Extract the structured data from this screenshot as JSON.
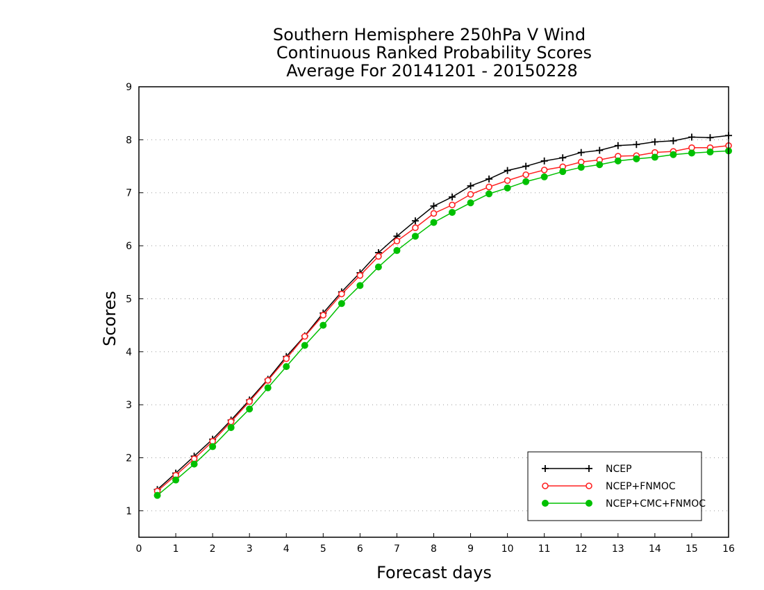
{
  "chart_data": {
    "type": "line",
    "title_lines": [
      "Southern Hemisphere 250hPa V Wind",
      "Continuous Ranked Probability Scores",
      "Average For 20141201 - 20150228"
    ],
    "xlabel": "Forecast days",
    "ylabel": "Scores",
    "xlim": [
      0,
      16
    ],
    "ylim": [
      0.5,
      9
    ],
    "xticks": [
      0,
      1,
      2,
      3,
      4,
      5,
      6,
      7,
      8,
      9,
      10,
      11,
      12,
      13,
      14,
      15,
      16
    ],
    "yticks": [
      1,
      2,
      3,
      4,
      5,
      6,
      7,
      8,
      9
    ],
    "grid": "horizontal-dotted",
    "legend_position": "bottom-right",
    "x": [
      0.5,
      1,
      1.5,
      2,
      2.5,
      3,
      3.5,
      4,
      4.5,
      5,
      5.5,
      6,
      6.5,
      7,
      7.5,
      8,
      8.5,
      9,
      9.5,
      10,
      10.5,
      11,
      11.5,
      12,
      12.5,
      13,
      13.5,
      14,
      14.5,
      15,
      15.5,
      16
    ],
    "series": [
      {
        "name": "NCEP",
        "color": "#000000",
        "marker": "plus",
        "values": [
          1.4,
          1.71,
          2.03,
          2.35,
          2.71,
          3.09,
          3.48,
          3.91,
          4.3,
          4.73,
          5.13,
          5.49,
          5.87,
          6.18,
          6.47,
          6.75,
          6.92,
          7.13,
          7.26,
          7.42,
          7.5,
          7.6,
          7.66,
          7.76,
          7.8,
          7.89,
          7.91,
          7.96,
          7.98,
          8.05,
          8.04,
          8.08
        ]
      },
      {
        "name": "NCEP+FNMOC",
        "color": "#ff2020",
        "marker": "open-circle",
        "values": [
          1.37,
          1.67,
          1.98,
          2.31,
          2.68,
          3.06,
          3.46,
          3.87,
          4.29,
          4.69,
          5.09,
          5.44,
          5.8,
          6.09,
          6.34,
          6.61,
          6.77,
          6.97,
          7.11,
          7.23,
          7.34,
          7.43,
          7.49,
          7.58,
          7.62,
          7.69,
          7.7,
          7.76,
          7.78,
          7.85,
          7.85,
          7.89
        ]
      },
      {
        "name": "NCEP+CMC+FNMOC",
        "color": "#00c000",
        "marker": "filled-circle",
        "values": [
          1.29,
          1.58,
          1.88,
          2.21,
          2.57,
          2.92,
          3.32,
          3.72,
          4.12,
          4.5,
          4.91,
          5.25,
          5.6,
          5.91,
          6.18,
          6.44,
          6.63,
          6.81,
          6.98,
          7.09,
          7.21,
          7.3,
          7.4,
          7.48,
          7.53,
          7.6,
          7.64,
          7.67,
          7.72,
          7.75,
          7.77,
          7.79
        ]
      }
    ]
  }
}
